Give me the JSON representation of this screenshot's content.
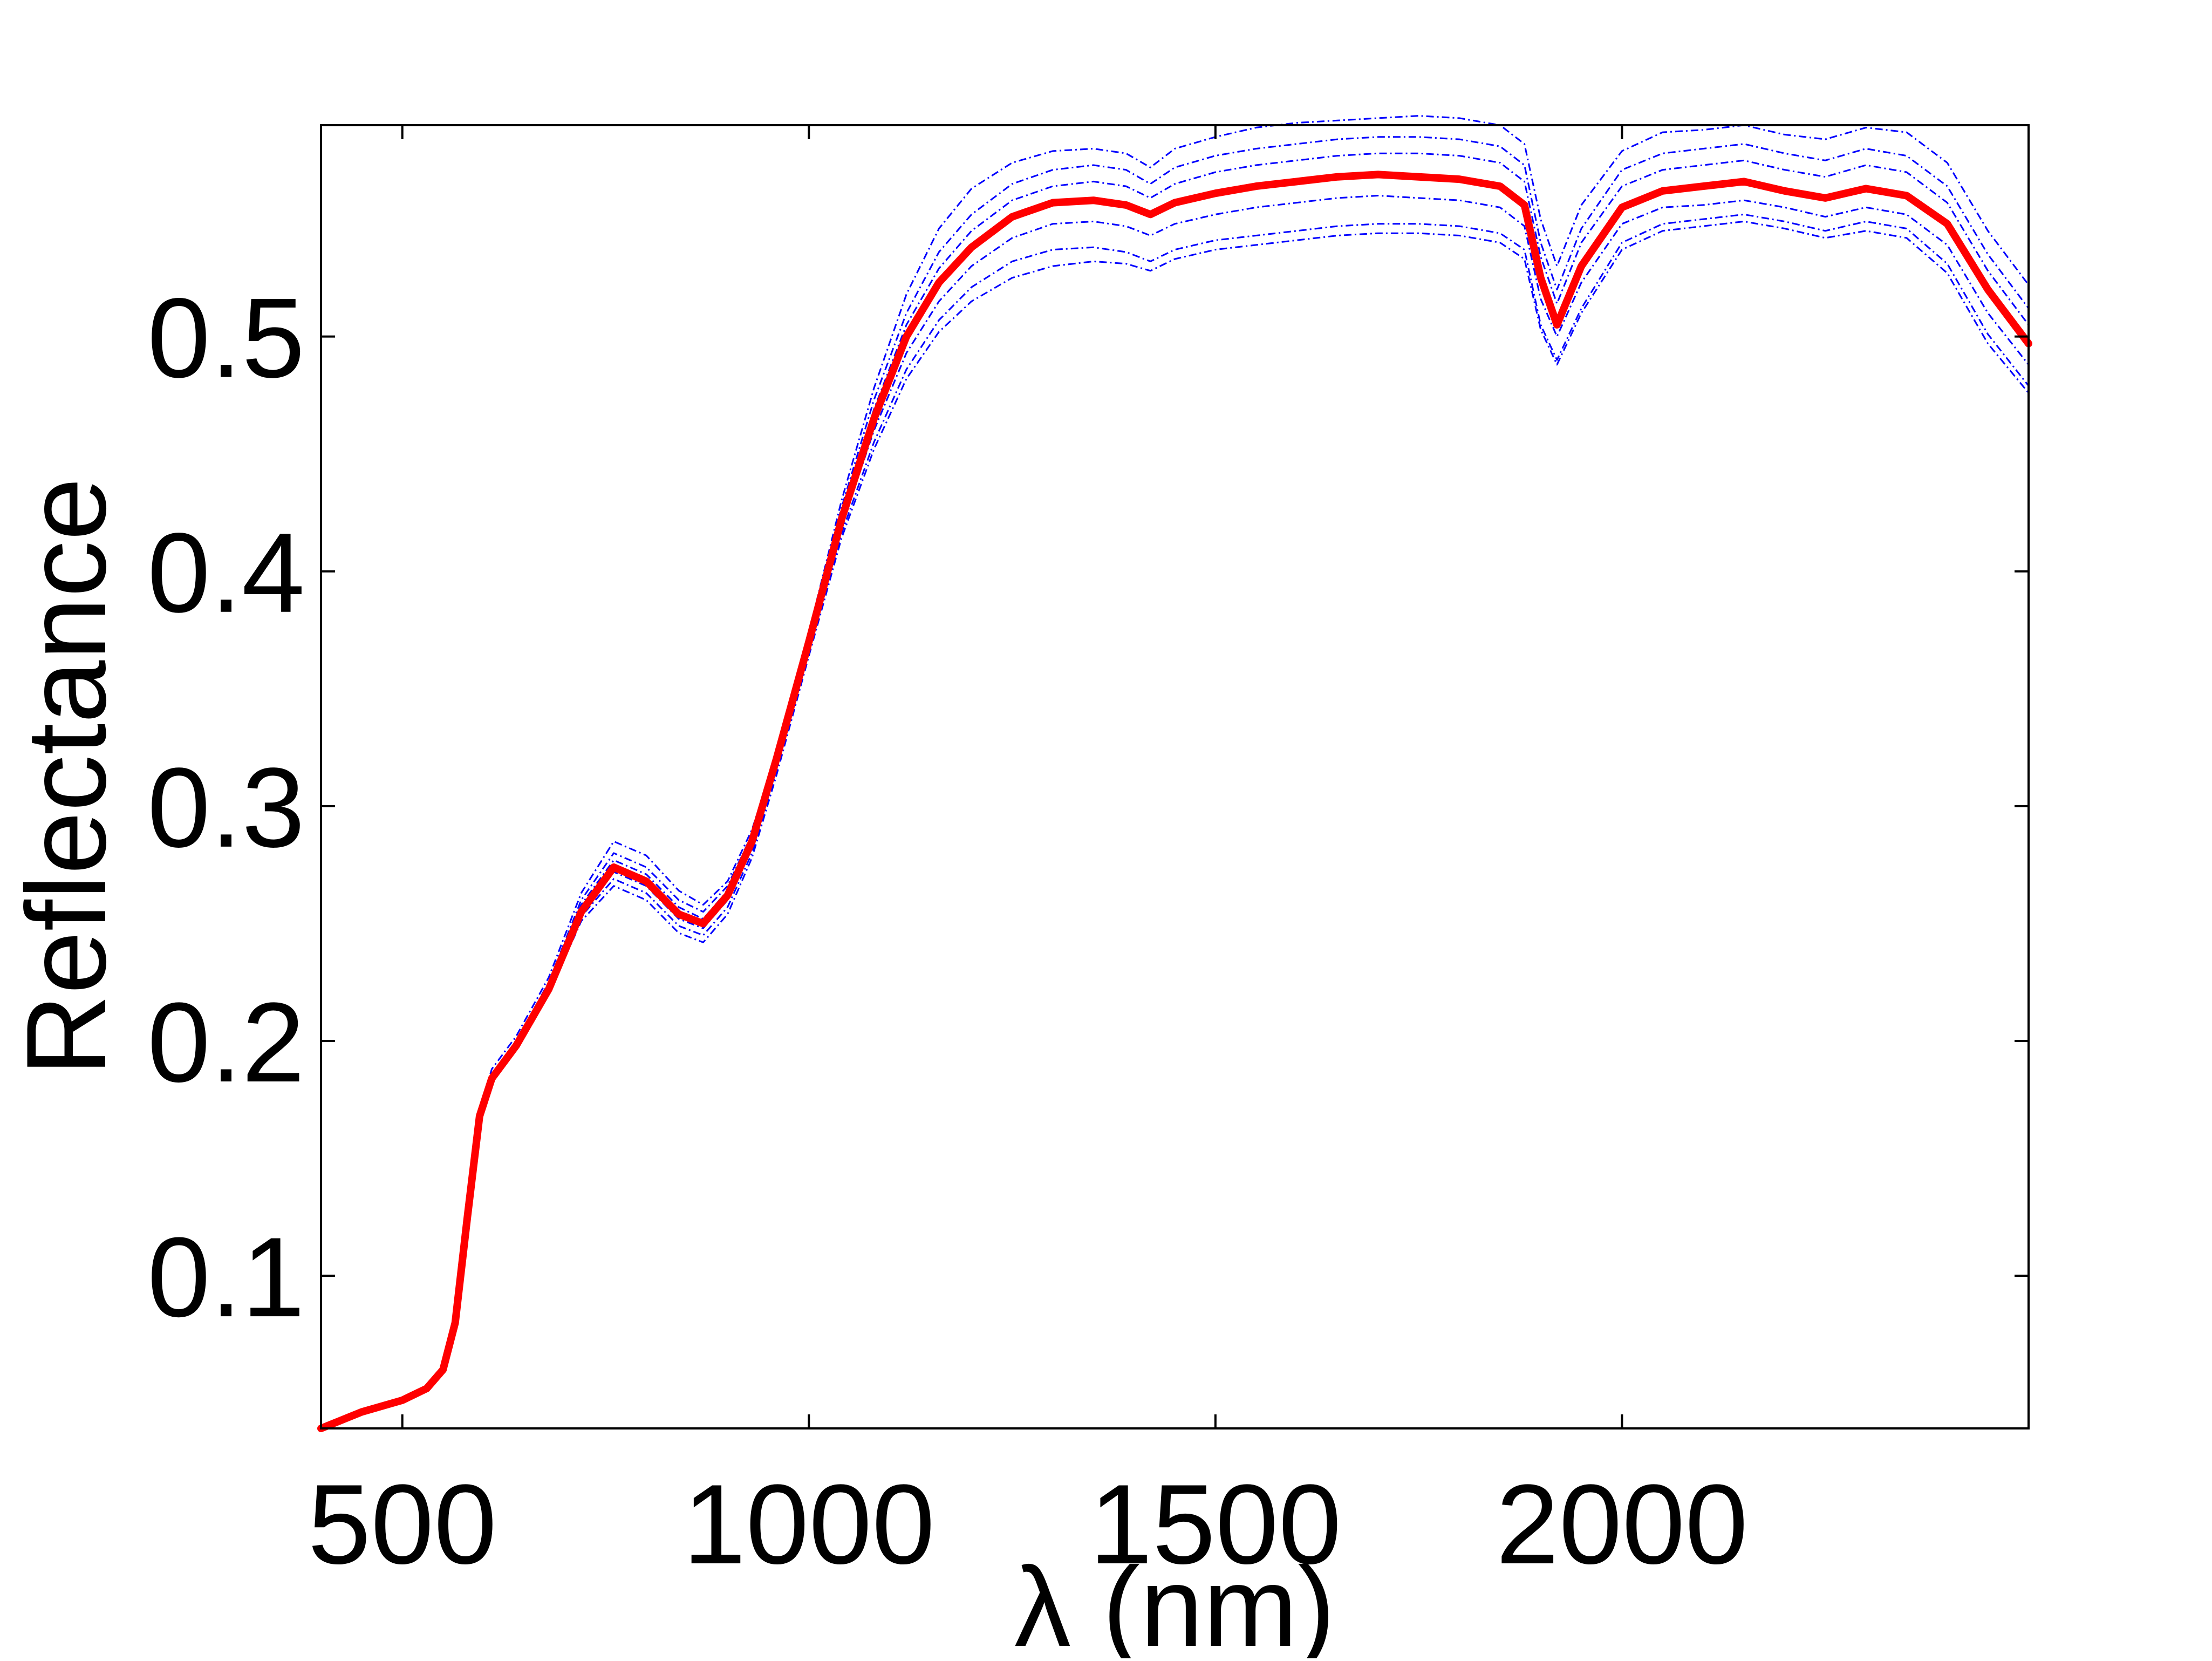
{
  "chart_data": {
    "type": "line",
    "xlabel": "λ (nm)",
    "ylabel": "Reflectance",
    "xlim": [
      400,
      2500
    ],
    "ylim": [
      0.035,
      0.59
    ],
    "xticks": [
      {
        "value": 500,
        "label": "500"
      },
      {
        "value": 1000,
        "label": "1000"
      },
      {
        "value": 1500,
        "label": "1500"
      },
      {
        "value": 2000,
        "label": "2000"
      }
    ],
    "yticks": [
      {
        "value": 0.1,
        "label": "0.1"
      },
      {
        "value": 0.2,
        "label": "0.2"
      },
      {
        "value": 0.3,
        "label": "0.3"
      },
      {
        "value": 0.4,
        "label": "0.4"
      },
      {
        "value": 0.5,
        "label": "0.5"
      }
    ],
    "grid": false,
    "legend": false,
    "colors": {
      "mean": "#ff0000",
      "samples": "#0000ff",
      "axes": "#000000"
    },
    "x": [
      400,
      450,
      500,
      530,
      550,
      565,
      580,
      595,
      610,
      640,
      680,
      720,
      760,
      800,
      840,
      870,
      900,
      930,
      960,
      1000,
      1040,
      1080,
      1120,
      1160,
      1200,
      1250,
      1300,
      1350,
      1390,
      1420,
      1450,
      1500,
      1550,
      1600,
      1650,
      1700,
      1750,
      1800,
      1850,
      1880,
      1900,
      1920,
      1950,
      2000,
      2050,
      2100,
      2150,
      2200,
      2250,
      2300,
      2350,
      2400,
      2450,
      2500
    ],
    "series": [
      {
        "name": "",
        "role": "mean",
        "values": [
          0.035,
          0.042,
          0.047,
          0.052,
          0.06,
          0.08,
          0.125,
          0.168,
          0.184,
          0.198,
          0.222,
          0.255,
          0.274,
          0.268,
          0.254,
          0.25,
          0.262,
          0.285,
          0.32,
          0.37,
          0.422,
          0.465,
          0.5,
          0.523,
          0.538,
          0.551,
          0.557,
          0.558,
          0.556,
          0.552,
          0.557,
          0.561,
          0.564,
          0.566,
          0.568,
          0.569,
          0.568,
          0.567,
          0.564,
          0.556,
          0.525,
          0.505,
          0.53,
          0.555,
          0.562,
          0.564,
          0.566,
          0.562,
          0.559,
          0.563,
          0.56,
          0.548,
          0.52,
          0.497
        ]
      },
      {
        "name": "",
        "role": "sample",
        "values": [
          0.035,
          0.042,
          0.047,
          0.052,
          0.06,
          0.08,
          0.125,
          0.17,
          0.188,
          0.202,
          0.227,
          0.263,
          0.285,
          0.279,
          0.264,
          0.258,
          0.268,
          0.29,
          0.322,
          0.374,
          0.43,
          0.478,
          0.518,
          0.546,
          0.563,
          0.574,
          0.579,
          0.58,
          0.578,
          0.572,
          0.58,
          0.585,
          0.589,
          0.591,
          0.592,
          0.593,
          0.594,
          0.593,
          0.59,
          0.582,
          0.55,
          0.53,
          0.556,
          0.579,
          0.587,
          0.588,
          0.59,
          0.586,
          0.584,
          0.589,
          0.587,
          0.574,
          0.545,
          0.522
        ]
      },
      {
        "name": "",
        "role": "sample",
        "values": [
          0.035,
          0.042,
          0.047,
          0.052,
          0.06,
          0.08,
          0.125,
          0.169,
          0.186,
          0.2,
          0.225,
          0.26,
          0.28,
          0.274,
          0.26,
          0.255,
          0.266,
          0.288,
          0.322,
          0.373,
          0.427,
          0.473,
          0.51,
          0.536,
          0.552,
          0.565,
          0.571,
          0.573,
          0.571,
          0.565,
          0.572,
          0.577,
          0.58,
          0.582,
          0.584,
          0.585,
          0.585,
          0.584,
          0.581,
          0.573,
          0.54,
          0.52,
          0.546,
          0.571,
          0.578,
          0.58,
          0.582,
          0.578,
          0.575,
          0.58,
          0.577,
          0.564,
          0.535,
          0.512
        ]
      },
      {
        "name": "",
        "role": "sample",
        "values": [
          0.035,
          0.042,
          0.047,
          0.052,
          0.06,
          0.08,
          0.125,
          0.169,
          0.186,
          0.2,
          0.224,
          0.258,
          0.277,
          0.271,
          0.257,
          0.252,
          0.264,
          0.287,
          0.321,
          0.372,
          0.425,
          0.469,
          0.505,
          0.529,
          0.545,
          0.558,
          0.564,
          0.566,
          0.564,
          0.559,
          0.565,
          0.57,
          0.573,
          0.575,
          0.577,
          0.578,
          0.578,
          0.577,
          0.574,
          0.566,
          0.534,
          0.514,
          0.54,
          0.564,
          0.571,
          0.573,
          0.575,
          0.571,
          0.568,
          0.573,
          0.57,
          0.557,
          0.528,
          0.505
        ]
      },
      {
        "name": "",
        "role": "sample",
        "values": [
          0.035,
          0.042,
          0.047,
          0.052,
          0.06,
          0.08,
          0.125,
          0.168,
          0.185,
          0.199,
          0.223,
          0.256,
          0.272,
          0.266,
          0.252,
          0.248,
          0.26,
          0.283,
          0.318,
          0.368,
          0.419,
          0.46,
          0.493,
          0.515,
          0.53,
          0.542,
          0.548,
          0.549,
          0.547,
          0.543,
          0.548,
          0.552,
          0.555,
          0.557,
          0.559,
          0.56,
          0.559,
          0.558,
          0.555,
          0.547,
          0.516,
          0.5,
          0.523,
          0.548,
          0.555,
          0.556,
          0.558,
          0.555,
          0.551,
          0.555,
          0.552,
          0.539,
          0.51,
          0.488
        ]
      },
      {
        "name": "",
        "role": "sample",
        "values": [
          0.035,
          0.042,
          0.047,
          0.052,
          0.06,
          0.08,
          0.125,
          0.167,
          0.183,
          0.197,
          0.221,
          0.253,
          0.269,
          0.263,
          0.249,
          0.245,
          0.257,
          0.28,
          0.315,
          0.366,
          0.416,
          0.455,
          0.486,
          0.507,
          0.521,
          0.532,
          0.537,
          0.538,
          0.536,
          0.532,
          0.537,
          0.541,
          0.543,
          0.545,
          0.547,
          0.548,
          0.548,
          0.547,
          0.544,
          0.537,
          0.505,
          0.49,
          0.512,
          0.54,
          0.548,
          0.55,
          0.552,
          0.549,
          0.545,
          0.549,
          0.546,
          0.531,
          0.501,
          0.479
        ]
      },
      {
        "name": "",
        "role": "sample",
        "values": [
          0.035,
          0.042,
          0.047,
          0.052,
          0.06,
          0.08,
          0.125,
          0.167,
          0.182,
          0.196,
          0.22,
          0.251,
          0.266,
          0.26,
          0.246,
          0.242,
          0.254,
          0.278,
          0.313,
          0.364,
          0.414,
          0.452,
          0.482,
          0.502,
          0.515,
          0.525,
          0.53,
          0.532,
          0.531,
          0.528,
          0.533,
          0.537,
          0.539,
          0.541,
          0.543,
          0.544,
          0.544,
          0.543,
          0.54,
          0.533,
          0.503,
          0.488,
          0.51,
          0.537,
          0.545,
          0.547,
          0.549,
          0.546,
          0.542,
          0.545,
          0.542,
          0.527,
          0.497,
          0.476
        ]
      }
    ]
  }
}
